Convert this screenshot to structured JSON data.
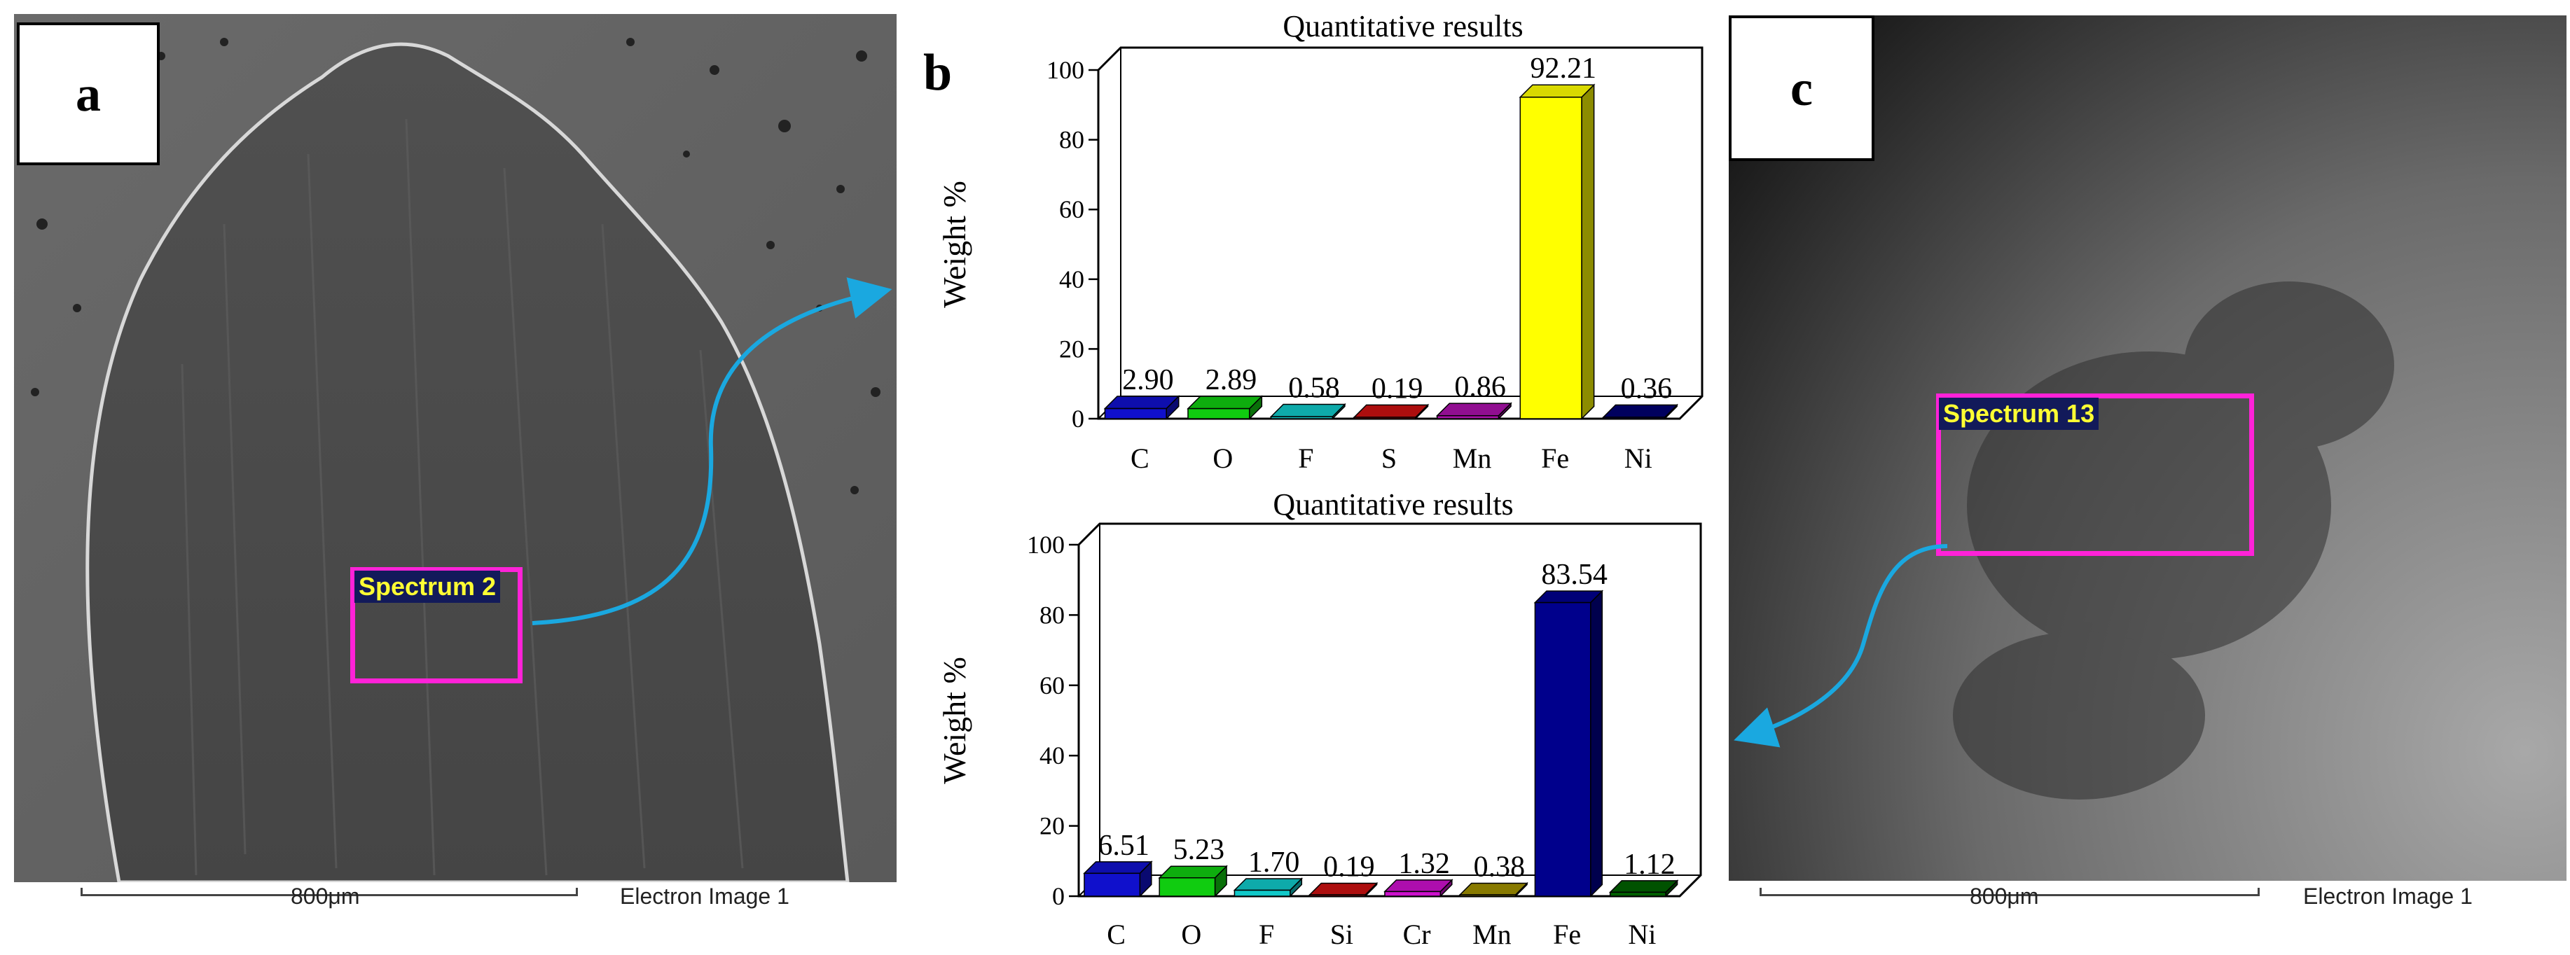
{
  "panel_a": {
    "label": "a",
    "spectrum_label": "Spectrum 2",
    "scale_text": "800μm",
    "image_caption": "Electron Image 1"
  },
  "panel_b": {
    "label": "b"
  },
  "panel_c": {
    "label": "c",
    "spectrum_label": "Spectrum 13",
    "scale_text": "800μm",
    "image_caption": "Electron Image 1"
  },
  "colors": {
    "C": "#1010cc",
    "O": "#10cc10",
    "F": "#10c8c8",
    "S": "#cc1010",
    "Si": "#cc1010",
    "Cr": "#cc10cc",
    "Mn_top": "#aa10aa",
    "Mn_bottom": "#a09000",
    "Fe_top": "#ffff00",
    "Fe_bottom": "#00008c",
    "Ni_top": "#00006e",
    "Ni_bottom": "#006000",
    "arrow": "#1aa8e0",
    "spectrum_box": "#ff22d8"
  },
  "chart_data": [
    {
      "type": "bar",
      "title": "Quantitative results",
      "ylabel": "Weight %",
      "xlabel": "",
      "categories": [
        "C",
        "O",
        "F",
        "S",
        "Mn",
        "Fe",
        "Ni"
      ],
      "values": [
        2.9,
        2.89,
        0.58,
        0.19,
        0.86,
        92.21,
        0.36
      ],
      "value_labels": [
        "2.90",
        "2.89",
        "0.58",
        "0.19",
        "0.86",
        "92.21",
        "0.36"
      ],
      "bar_colors": [
        "#1010cc",
        "#10cc10",
        "#10c8c8",
        "#cc1010",
        "#aa10aa",
        "#ffff00",
        "#00006e"
      ],
      "ylim": [
        0,
        100
      ],
      "yticks": [
        "0",
        "20",
        "40",
        "60",
        "80",
        "100"
      ]
    },
    {
      "type": "bar",
      "title": "Quantitative results",
      "ylabel": "Weight %",
      "xlabel": "",
      "categories": [
        "C",
        "O",
        "F",
        "Si",
        "Cr",
        "Mn",
        "Fe",
        "Ni"
      ],
      "values": [
        6.51,
        5.23,
        1.7,
        0.19,
        1.32,
        0.38,
        83.54,
        1.12
      ],
      "value_labels": [
        "6.51",
        "5.23",
        "1.70",
        "0.19",
        "1.32",
        "0.38",
        "83.54",
        "1.12"
      ],
      "bar_colors": [
        "#1010cc",
        "#10cc10",
        "#10c8c8",
        "#cc1010",
        "#cc10cc",
        "#a09000",
        "#00008c",
        "#006000"
      ],
      "ylim": [
        0,
        100
      ],
      "yticks": [
        "0",
        "20",
        "40",
        "60",
        "80",
        "100"
      ]
    }
  ]
}
